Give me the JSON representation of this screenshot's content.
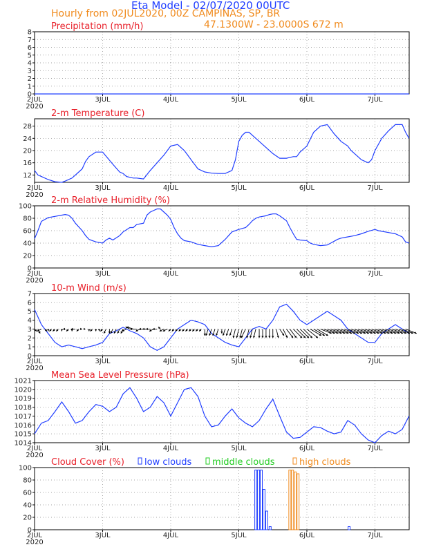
{
  "header": {
    "title": "Eta Model - 02/07/2020 00UTC",
    "subtitle": "Hourly from 02JUL2020, 00Z  CAMPINAS, SP, BR",
    "coords": "47.1300W - 23.0000S     672  m"
  },
  "x_axis": {
    "ticks": [
      {
        "day": 0,
        "label": "2JUL",
        "year": "2020"
      },
      {
        "day": 1,
        "label": "3JUL"
      },
      {
        "day": 2,
        "label": "4JUL"
      },
      {
        "day": 3,
        "label": "5JUL"
      },
      {
        "day": 4,
        "label": "6JUL"
      },
      {
        "day": 5,
        "label": "7JUL"
      }
    ],
    "xmax": 5.5
  },
  "chart_data": [
    {
      "id": "precip",
      "type": "line",
      "title": "Precipitation (mm/h)",
      "ylim": [
        0,
        8
      ],
      "yticks": [
        0,
        1,
        2,
        3,
        4,
        5,
        6,
        7,
        8
      ],
      "x": [
        0,
        5.5
      ],
      "y": [
        0,
        0
      ]
    },
    {
      "id": "temp",
      "type": "line",
      "title": "2-m Temperature (C)",
      "ylim": [
        9.6,
        30.4
      ],
      "yticks": [
        12,
        16,
        20,
        24,
        28
      ],
      "x": [
        0,
        0.05,
        0.1,
        0.2,
        0.3,
        0.4,
        0.45,
        0.55,
        0.65,
        0.7,
        0.75,
        0.8,
        0.9,
        1.0,
        1.15,
        1.25,
        1.3,
        1.35,
        1.45,
        1.5,
        1.6,
        1.7,
        1.9,
        2.0,
        2.1,
        2.2,
        2.25,
        2.3,
        2.4,
        2.5,
        2.55,
        2.6,
        2.7,
        2.8,
        2.9,
        2.95,
        3.0,
        3.05,
        3.1,
        3.15,
        3.2,
        3.3,
        3.35,
        3.4,
        3.5,
        3.6,
        3.7,
        3.8,
        3.85,
        3.9,
        4.0,
        4.1,
        4.2,
        4.3,
        4.4,
        4.5,
        4.6,
        4.65,
        4.7,
        4.75,
        4.8,
        4.9,
        4.95,
        5.0,
        5.1,
        5.2,
        5.3,
        5.4,
        5.45,
        5.5
      ],
      "y": [
        13.5,
        12,
        11.5,
        10.5,
        9.8,
        9.6,
        10,
        11,
        13,
        14,
        16.5,
        18,
        19.5,
        19.5,
        15.5,
        13,
        12.5,
        11.5,
        11,
        11,
        10.7,
        13.5,
        18.5,
        21.5,
        22,
        20,
        18.5,
        17,
        14,
        13,
        12.8,
        12.6,
        12.5,
        12.5,
        13.5,
        17,
        23,
        25,
        26,
        26,
        25,
        23,
        22,
        21,
        19,
        17.5,
        17.5,
        18,
        18,
        19.5,
        21.5,
        26,
        28,
        28.5,
        25.5,
        23,
        21.5,
        20,
        19,
        18,
        17,
        16,
        17,
        20,
        24,
        26.5,
        28.5,
        28.5,
        26,
        24
      ]
    },
    {
      "id": "rh",
      "type": "line",
      "title": "2-m Relative Humidity (%)",
      "ylim": [
        0,
        100
      ],
      "yticks": [
        0,
        20,
        40,
        60,
        80,
        100
      ],
      "x": [
        0,
        0.05,
        0.1,
        0.2,
        0.3,
        0.4,
        0.45,
        0.5,
        0.55,
        0.6,
        0.7,
        0.75,
        0.8,
        0.85,
        0.9,
        1.0,
        1.05,
        1.1,
        1.15,
        1.25,
        1.3,
        1.4,
        1.45,
        1.5,
        1.6,
        1.65,
        1.7,
        1.8,
        1.85,
        1.9,
        1.95,
        2.0,
        2.05,
        2.1,
        2.15,
        2.2,
        2.3,
        2.4,
        2.5,
        2.6,
        2.7,
        2.75,
        2.8,
        2.85,
        2.9,
        3.0,
        3.1,
        3.15,
        3.2,
        3.25,
        3.3,
        3.4,
        3.45,
        3.5,
        3.55,
        3.6,
        3.7,
        3.75,
        3.8,
        3.85,
        3.9,
        4.0,
        4.05,
        4.1,
        4.2,
        4.3,
        4.35,
        4.4,
        4.45,
        4.5,
        4.6,
        4.7,
        4.8,
        4.9,
        5.0,
        5.05,
        5.1,
        5.2,
        5.3,
        5.4,
        5.45,
        5.5
      ],
      "y": [
        47,
        60,
        75,
        81,
        83,
        85,
        86,
        85,
        80,
        72,
        60,
        52,
        46,
        44,
        42,
        40,
        45,
        48,
        45,
        52,
        58,
        65,
        65,
        70,
        72,
        85,
        90,
        95,
        95,
        90,
        85,
        78,
        65,
        55,
        48,
        44,
        42,
        38,
        36,
        34,
        36,
        41,
        46,
        52,
        58,
        62,
        65,
        70,
        76,
        80,
        82,
        84,
        86,
        87,
        87,
        84,
        76,
        65,
        55,
        46,
        45,
        44,
        40,
        38,
        36,
        37,
        40,
        43,
        46,
        48,
        50,
        52,
        55,
        59,
        62,
        60,
        59,
        57,
        55,
        50,
        42,
        40
      ]
    },
    {
      "id": "wind",
      "type": "line",
      "title": "10-m Wind (m/s)",
      "ylim": [
        0,
        7
      ],
      "yticks": [
        0,
        1,
        2,
        3,
        4,
        5,
        6,
        7
      ],
      "x": [
        0,
        0.1,
        0.2,
        0.3,
        0.4,
        0.5,
        0.6,
        0.7,
        0.8,
        0.9,
        1.0,
        1.1,
        1.2,
        1.3,
        1.4,
        1.5,
        1.6,
        1.7,
        1.8,
        1.9,
        2.0,
        2.1,
        2.2,
        2.3,
        2.4,
        2.5,
        2.6,
        2.7,
        2.8,
        2.9,
        3.0,
        3.1,
        3.2,
        3.3,
        3.4,
        3.5,
        3.6,
        3.7,
        3.8,
        3.9,
        4.0,
        4.1,
        4.2,
        4.3,
        4.4,
        4.5,
        4.6,
        4.7,
        4.8,
        4.9,
        5.0,
        5.1,
        5.2,
        5.3,
        5.4,
        5.5
      ],
      "y": [
        5.2,
        3.5,
        2.5,
        1.5,
        1.0,
        1.2,
        1.0,
        0.8,
        1.0,
        1.2,
        1.5,
        2.5,
        2.8,
        3.2,
        2.8,
        2.5,
        2.0,
        1.0,
        0.6,
        1.0,
        2.0,
        3.0,
        3.5,
        4.0,
        3.8,
        3.5,
        2.5,
        2.0,
        1.5,
        1.2,
        1.0,
        2.0,
        3.0,
        3.3,
        3.0,
        4.0,
        5.5,
        5.8,
        5.0,
        4.0,
        3.5,
        4.0,
        4.5,
        5.0,
        4.5,
        4.0,
        3.0,
        2.5,
        2.0,
        1.5,
        1.5,
        2.5,
        3.0,
        3.5,
        3.0,
        2.5
      ],
      "barbs": {
        "x0": 0,
        "dx": 0.05,
        "count": 110,
        "u": [
          1,
          1,
          -2,
          1,
          0,
          -1,
          -1,
          -1,
          0,
          -1,
          -1,
          0,
          -2,
          -1,
          0,
          0,
          0,
          -1,
          0,
          0,
          -1,
          -1,
          0,
          -1,
          -1,
          -1,
          -1,
          -2,
          -2,
          -3,
          -3,
          -2,
          -2,
          -2,
          -2,
          -2,
          -2,
          -1,
          -2,
          -2,
          -1,
          -1,
          -1,
          -1,
          -1,
          -1,
          -1,
          -1,
          -1,
          -1,
          0,
          -1,
          -1,
          -1,
          -1,
          0,
          -1,
          -1,
          -1,
          -1,
          -1,
          -1,
          -2,
          -1,
          -1,
          -1,
          0,
          0,
          0,
          0,
          0,
          1,
          2,
          2,
          3,
          3,
          4,
          4,
          4,
          4,
          5,
          5,
          5,
          5,
          5,
          5,
          5,
          5,
          5,
          5,
          5,
          5,
          5,
          5,
          5,
          5,
          5,
          5,
          5,
          5,
          5,
          5,
          5,
          5,
          5,
          5,
          5,
          5,
          5,
          5
        ],
        "v": [
          -1,
          -2,
          -1,
          -1,
          -1,
          -1,
          -1,
          -1,
          -1,
          0,
          -1,
          -1,
          0,
          -1,
          0,
          0,
          -1,
          -1,
          -1,
          -1,
          -1,
          -2,
          -2,
          -2,
          -2,
          -2,
          -2,
          -1,
          1,
          1,
          0,
          -1,
          0,
          0,
          0,
          -1,
          0,
          1,
          -1,
          -1,
          -1,
          -1,
          -1,
          -1,
          -1,
          -1,
          -1,
          -1,
          -1,
          -1,
          -3,
          -3,
          -3,
          -3,
          -3,
          -2,
          -3,
          -3,
          -3,
          -4,
          -4,
          -4,
          -4,
          -4,
          -4,
          -4,
          -4,
          -4,
          -4,
          -4,
          -4,
          -4,
          -3,
          -4,
          -4,
          -4,
          -4,
          -4,
          -4,
          -4,
          -4,
          -3,
          -3,
          -3,
          -2,
          -2,
          -2,
          -2,
          -2,
          -2,
          -2,
          -2,
          -2,
          -2,
          -2,
          -2,
          -2,
          -2,
          -2,
          -2,
          -2,
          -2,
          -2,
          -2,
          -2,
          -2,
          -2,
          -2,
          -2,
          -2
        ]
      }
    },
    {
      "id": "mslp",
      "type": "line",
      "title": "Mean Sea Level Pressure (hPa)",
      "ylim": [
        1014,
        1021
      ],
      "yticks": [
        1014,
        1015,
        1016,
        1017,
        1018,
        1019,
        1020,
        1021
      ],
      "x": [
        0,
        0.1,
        0.2,
        0.3,
        0.4,
        0.5,
        0.6,
        0.7,
        0.8,
        0.9,
        1.0,
        1.1,
        1.2,
        1.3,
        1.4,
        1.5,
        1.6,
        1.7,
        1.8,
        1.9,
        2.0,
        2.1,
        2.2,
        2.3,
        2.4,
        2.5,
        2.6,
        2.7,
        2.8,
        2.9,
        3.0,
        3.1,
        3.2,
        3.3,
        3.4,
        3.5,
        3.6,
        3.7,
        3.8,
        3.9,
        4.0,
        4.1,
        4.2,
        4.3,
        4.4,
        4.5,
        4.6,
        4.7,
        4.8,
        4.9,
        5.0,
        5.1,
        5.2,
        5.3,
        5.4,
        5.5
      ],
      "y": [
        1015,
        1016.2,
        1016.5,
        1017.5,
        1018.6,
        1017.5,
        1016.2,
        1016.5,
        1017.5,
        1018.3,
        1018.1,
        1017.5,
        1018.0,
        1019.5,
        1020.2,
        1019.0,
        1017.5,
        1018.0,
        1019.2,
        1018.5,
        1017.0,
        1018.5,
        1020.0,
        1020.2,
        1019.2,
        1017.0,
        1015.8,
        1016.0,
        1017.0,
        1017.8,
        1016.8,
        1016.2,
        1015.8,
        1016.5,
        1017.8,
        1018.9,
        1017.0,
        1015.2,
        1014.5,
        1014.6,
        1015.2,
        1015.8,
        1015.7,
        1015.3,
        1015.0,
        1015.2,
        1016.5,
        1016.0,
        1015.0,
        1014.3,
        1014.0,
        1014.8,
        1015.3,
        1015.0,
        1015.5,
        1017.0
      ]
    },
    {
      "id": "cloud",
      "type": "bar",
      "title": "Cloud Cover (%)",
      "ylim": [
        0,
        100
      ],
      "yticks": [
        0,
        20,
        40,
        60,
        80,
        100
      ],
      "legend": [
        {
          "key": "low",
          "label": "low clouds",
          "color": "#1f3dff"
        },
        {
          "key": "mid",
          "label": "middle clouds",
          "color": "#22cc22"
        },
        {
          "key": "high",
          "label": "high clouds",
          "color": "#f08a1c"
        }
      ],
      "bars": [
        {
          "x": 3.25,
          "value": 96,
          "layer": "low"
        },
        {
          "x": 3.29,
          "value": 96,
          "layer": "low"
        },
        {
          "x": 3.33,
          "value": 96,
          "layer": "low"
        },
        {
          "x": 3.37,
          "value": 65,
          "layer": "low"
        },
        {
          "x": 3.41,
          "value": 30,
          "layer": "low"
        },
        {
          "x": 3.46,
          "value": 5,
          "layer": "low"
        },
        {
          "x": 3.75,
          "value": 96,
          "layer": "high"
        },
        {
          "x": 3.79,
          "value": 96,
          "layer": "high"
        },
        {
          "x": 3.83,
          "value": 93,
          "layer": "high"
        },
        {
          "x": 3.87,
          "value": 90,
          "layer": "high"
        },
        {
          "x": 4.62,
          "value": 5,
          "layer": "low"
        }
      ]
    }
  ]
}
